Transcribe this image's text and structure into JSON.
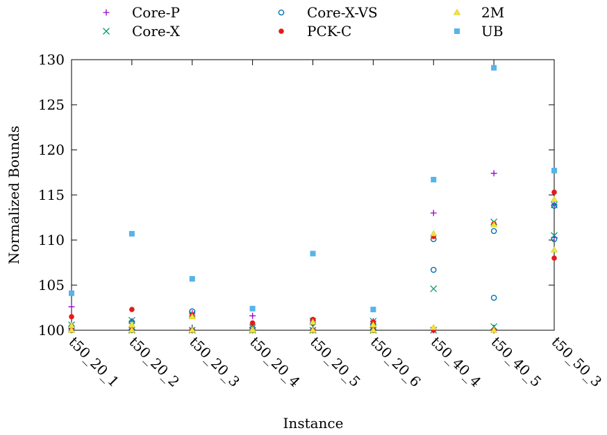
{
  "chart_data": {
    "type": "scatter",
    "title": "",
    "xlabel": "Instance",
    "ylabel": "Normalized Bounds",
    "ylim": [
      100,
      130
    ],
    "yticks": [
      100,
      105,
      110,
      115,
      120,
      125,
      130
    ],
    "legend_position": "top-center",
    "grid": false,
    "categories": [
      "t50_20_1",
      "t50_20_2",
      "t50_20_3",
      "t50_20_4",
      "t50_20_5",
      "t50_20_6",
      "t50_40_4",
      "t50_40_5",
      "t50_50_3"
    ],
    "series": [
      {
        "name": "Core-P",
        "marker": "plus",
        "color": "#9400d3",
        "points": [
          [
            0,
            102.6
          ],
          [
            0,
            100.2
          ],
          [
            1,
            101.0
          ],
          [
            1,
            100.1
          ],
          [
            2,
            101.9
          ],
          [
            2,
            100.0
          ],
          [
            3,
            101.6
          ],
          [
            3,
            100.0
          ],
          [
            4,
            101.1
          ],
          [
            4,
            100.0
          ],
          [
            5,
            101.0
          ],
          [
            5,
            100.1
          ],
          [
            6,
            113.0
          ],
          [
            6,
            100.0
          ],
          [
            7,
            117.4
          ],
          [
            7,
            100.0
          ],
          [
            8,
            113.9
          ],
          [
            8,
            110.3
          ]
        ]
      },
      {
        "name": "Core-X",
        "marker": "cross",
        "color": "#009e73",
        "points": [
          [
            0,
            100.6
          ],
          [
            0,
            100.1
          ],
          [
            1,
            101.1
          ],
          [
            1,
            100.0
          ],
          [
            2,
            101.8
          ],
          [
            2,
            100.0
          ],
          [
            3,
            100.3
          ],
          [
            3,
            100.0
          ],
          [
            4,
            101.0
          ],
          [
            4,
            100.0
          ],
          [
            5,
            101.0
          ],
          [
            5,
            100.0
          ],
          [
            6,
            104.6
          ],
          [
            6,
            100.0
          ],
          [
            7,
            112.0
          ],
          [
            7,
            100.4
          ],
          [
            8,
            113.9
          ],
          [
            8,
            110.5
          ]
        ]
      },
      {
        "name": "Core-X-VS",
        "marker": "circle",
        "color": "#0072b2",
        "points": [
          [
            0,
            100.4
          ],
          [
            0,
            100.0
          ],
          [
            1,
            100.9
          ],
          [
            1,
            100.0
          ],
          [
            2,
            102.1
          ],
          [
            2,
            100.0
          ],
          [
            3,
            100.2
          ],
          [
            3,
            100.0
          ],
          [
            4,
            100.8
          ],
          [
            4,
            100.0
          ],
          [
            5,
            100.5
          ],
          [
            5,
            100.0
          ],
          [
            6,
            110.1
          ],
          [
            6,
            106.7
          ],
          [
            7,
            111.0
          ],
          [
            7,
            103.6
          ],
          [
            8,
            110.1
          ],
          [
            8,
            113.8
          ]
        ]
      },
      {
        "name": "PCK-C",
        "marker": "dot",
        "color": "#e41a1c",
        "points": [
          [
            0,
            101.5
          ],
          [
            0,
            100.0
          ],
          [
            1,
            102.3
          ],
          [
            1,
            100.0
          ],
          [
            2,
            101.7
          ],
          [
            2,
            100.0
          ],
          [
            3,
            100.8
          ],
          [
            3,
            100.0
          ],
          [
            4,
            101.2
          ],
          [
            4,
            100.0
          ],
          [
            5,
            100.9
          ],
          [
            5,
            100.0
          ],
          [
            6,
            110.4
          ],
          [
            6,
            100.0
          ],
          [
            7,
            111.8
          ],
          [
            7,
            100.0
          ],
          [
            8,
            115.3
          ],
          [
            8,
            108.0
          ]
        ]
      },
      {
        "name": "2M",
        "marker": "triangle",
        "color": "#f0e442",
        "points": [
          [
            0,
            100.5
          ],
          [
            0,
            100.0
          ],
          [
            1,
            100.6
          ],
          [
            1,
            100.0
          ],
          [
            2,
            101.5
          ],
          [
            2,
            100.0
          ],
          [
            3,
            100.1
          ],
          [
            3,
            100.0
          ],
          [
            4,
            100.9
          ],
          [
            4,
            100.0
          ],
          [
            5,
            100.6
          ],
          [
            5,
            100.0
          ],
          [
            6,
            110.7
          ],
          [
            6,
            100.3
          ],
          [
            7,
            111.7
          ],
          [
            7,
            100.0
          ],
          [
            8,
            114.5
          ],
          [
            8,
            108.9
          ]
        ]
      },
      {
        "name": "UB",
        "marker": "square",
        "color": "#56b4e9",
        "points": [
          [
            0,
            104.1
          ],
          [
            1,
            110.7
          ],
          [
            2,
            105.7
          ],
          [
            3,
            102.4
          ],
          [
            4,
            108.5
          ],
          [
            5,
            102.3
          ],
          [
            6,
            116.7
          ],
          [
            7,
            129.1
          ],
          [
            8,
            117.7
          ]
        ]
      }
    ]
  }
}
